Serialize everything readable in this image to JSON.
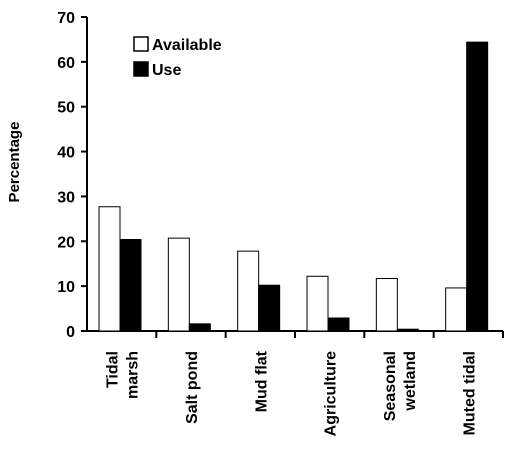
{
  "chart_data": {
    "type": "bar",
    "categories": [
      [
        "Tidal",
        "marsh"
      ],
      [
        "Salt pond"
      ],
      [
        "Mud flat"
      ],
      [
        "Agriculture"
      ],
      [
        "Seasonal",
        "wetland"
      ],
      [
        "Muted tidal"
      ]
    ],
    "series": [
      {
        "name": "Available",
        "values": [
          27.7,
          20.7,
          17.8,
          12.2,
          11.7,
          9.6
        ],
        "fill": "#ffffff",
        "stroke": "#000000"
      },
      {
        "name": "Use",
        "values": [
          20.4,
          1.6,
          10.2,
          2.9,
          0.4,
          64.4
        ],
        "fill": "#000000",
        "stroke": "#000000"
      }
    ],
    "xlabel": "",
    "ylabel": "Percentage",
    "ylim": [
      0,
      70
    ],
    "yticks": [
      0,
      10,
      20,
      30,
      40,
      50,
      60,
      70
    ],
    "legend_position": "top-left",
    "grid": false
  }
}
